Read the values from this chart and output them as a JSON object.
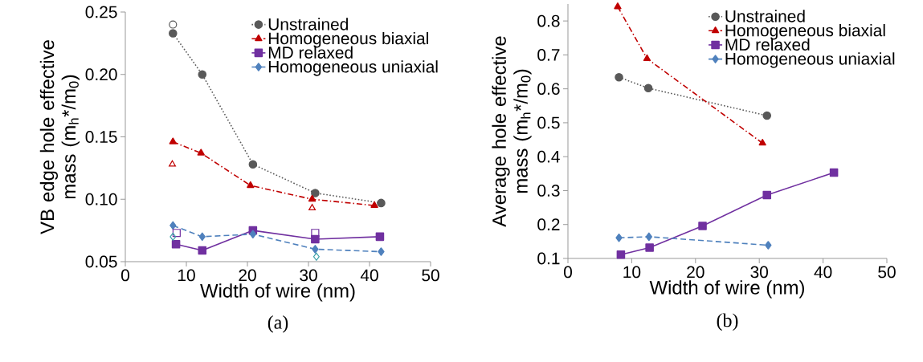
{
  "chart_data": [
    {
      "type": "line",
      "xlabel": "Width of wire (nm)",
      "ylabel": "VB edge hole effective mass (m$_{h}$*/m$_{0}$)",
      "annotations": [
        "(a)"
      ],
      "xlim": [
        0,
        50
      ],
      "xticks": [
        0,
        10,
        20,
        30,
        40,
        50
      ],
      "ylim": [
        0.05,
        0.25
      ],
      "yticks": [
        {
          "value": 0.05,
          "label": "0.05"
        },
        {
          "value": 0.1,
          "label": "0.10"
        },
        {
          "value": 0.15,
          "label": "0.15"
        },
        {
          "value": 0.2,
          "label": "0.20"
        },
        {
          "value": 0.25,
          "label": "0.25"
        }
      ],
      "grid": false,
      "legend": "top right",
      "series": [
        {
          "name": "Unstrained",
          "color": "#595959",
          "marker": "circle",
          "line_style": "dotted",
          "x": [
            7.8,
            12.6,
            20.9,
            31.1,
            41.9
          ],
          "values": [
            0.233,
            0.2,
            0.128,
            0.105,
            0.097
          ]
        },
        {
          "name": "Homogeneous biaxial",
          "color": "#c00000",
          "marker": "triangle",
          "line_style": "dashdot",
          "x": [
            7.8,
            12.4,
            20.5,
            30.6,
            40.8
          ],
          "values": [
            0.146,
            0.137,
            0.111,
            0.1,
            0.095
          ]
        },
        {
          "name": "MD relaxed",
          "color": "#7030a0",
          "marker": "square",
          "line_style": "solid",
          "x": [
            8.3,
            12.6,
            20.9,
            31.1,
            41.7
          ],
          "values": [
            0.064,
            0.059,
            0.075,
            0.068,
            0.07
          ]
        },
        {
          "name": "Homogeneous uniaxial",
          "color": "#4f81bd",
          "marker": "diamond",
          "line_style": "dashed",
          "x": [
            7.8,
            12.6,
            20.9,
            31.1,
            41.9
          ],
          "values": [
            0.079,
            0.07,
            0.072,
            0.06,
            0.058
          ]
        },
        {
          "type": "scatter",
          "color": "#595959",
          "marker": "circle",
          "x": [
            7.8
          ],
          "values": [
            0.24
          ]
        },
        {
          "type": "scatter",
          "color": "#c00000",
          "marker": "triangle",
          "x": [
            7.7,
            30.6
          ],
          "values": [
            0.128,
            0.093
          ]
        },
        {
          "type": "scatter",
          "color": "#7030a0",
          "marker": "square",
          "x": [
            8.4,
            31.1
          ],
          "values": [
            0.073,
            0.073
          ]
        },
        {
          "type": "scatter",
          "color": "#3aa0a8",
          "marker": "diamond",
          "x": [
            7.8,
            31.3
          ],
          "values": [
            0.07,
            0.054
          ]
        }
      ]
    },
    {
      "type": "line",
      "xlabel": "Width of wire (nm)",
      "ylabel": "Average hole effective mass (m$_{h}$*/m$_{0}$)",
      "annotations": [
        "(b)"
      ],
      "xlim": [
        0,
        50
      ],
      "xticks": [
        0,
        10,
        20,
        30,
        40,
        50
      ],
      "ylim": [
        0.1,
        0.85
      ],
      "yticks": [
        0.1,
        0.2,
        0.3,
        0.4,
        0.5,
        0.6,
        0.7,
        0.8
      ],
      "grid": false,
      "legend": "top right",
      "series": [
        {
          "name": "Unstrained",
          "color": "#595959",
          "marker": "circle",
          "line_style": "dotted",
          "x": [
            8.0,
            12.6,
            31.2
          ],
          "values": [
            0.634,
            0.602,
            0.521
          ]
        },
        {
          "name": "Homogeneous biaxial",
          "color": "#c00000",
          "marker": "triangle",
          "line_style": "dashdot",
          "x": [
            7.8,
            12.4,
            30.5
          ],
          "values": [
            0.842,
            0.689,
            0.44
          ]
        },
        {
          "name": "MD relaxed",
          "color": "#7030a0",
          "marker": "square",
          "line_style": "solid",
          "x": [
            8.3,
            12.8,
            21.1,
            31.2,
            41.7
          ],
          "values": [
            0.111,
            0.132,
            0.196,
            0.287,
            0.353
          ]
        },
        {
          "name": "Homogeneous uniaxial",
          "color": "#4f81bd",
          "marker": "diamond",
          "line_style": "dashed",
          "x": [
            8.0,
            12.7,
            31.4
          ],
          "values": [
            0.161,
            0.164,
            0.139
          ]
        }
      ]
    }
  ]
}
